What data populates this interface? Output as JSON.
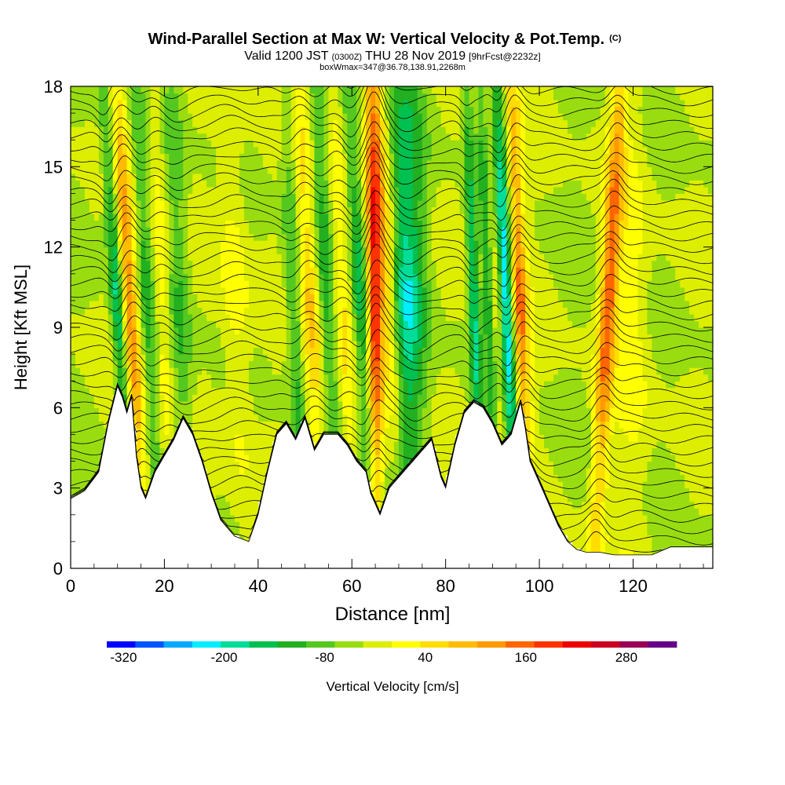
{
  "chart_data": {
    "type": "heatmap",
    "title": "Wind-Parallel Section at Max W: Vertical Velocity & Pot.Temp.",
    "title_mark": "(C)",
    "subtitle_parts": [
      "Valid 1200 JST",
      "(0300Z)",
      "THU 28 Nov 2019",
      "[9hrFcst@2232z]"
    ],
    "subtitle2": "boxWmax=347@36.78,138.91,2268m",
    "xlabel": "Distance [nm]",
    "ylabel": "Height [Kft MSL]",
    "xlim": [
      0,
      137
    ],
    "ylim": [
      0,
      18
    ],
    "x_ticks": [
      0,
      20,
      40,
      60,
      80,
      100,
      120
    ],
    "y_ticks": [
      0,
      3,
      6,
      9,
      12,
      15,
      18
    ],
    "colorbar": {
      "label": "Vertical Velocity [cm/s]",
      "min": -340,
      "max": 340,
      "step": 40,
      "tick_labels": [
        -320,
        -200,
        -80,
        40,
        160,
        280
      ],
      "colors": [
        "#0000ff",
        "#0055ff",
        "#00aaff",
        "#00eeff",
        "#00dd99",
        "#00c050",
        "#22b020",
        "#55c820",
        "#99dd11",
        "#ddee00",
        "#ffff00",
        "#ffdd00",
        "#ffbb00",
        "#ff9900",
        "#ff6600",
        "#ff3300",
        "#ee0000",
        "#cc0022",
        "#990055",
        "#660088"
      ]
    },
    "terrain_kft": [
      [
        0,
        2.6
      ],
      [
        3,
        2.9
      ],
      [
        6,
        3.6
      ],
      [
        8,
        5.4
      ],
      [
        10,
        6.8
      ],
      [
        11,
        6.4
      ],
      [
        12,
        5.8
      ],
      [
        13,
        6.4
      ],
      [
        14,
        4.2
      ],
      [
        15,
        3.0
      ],
      [
        16,
        2.6
      ],
      [
        18,
        3.6
      ],
      [
        20,
        4.2
      ],
      [
        22,
        4.8
      ],
      [
        24,
        5.6
      ],
      [
        26,
        5.0
      ],
      [
        28,
        4.0
      ],
      [
        30,
        2.8
      ],
      [
        32,
        1.8
      ],
      [
        35,
        1.2
      ],
      [
        38,
        1.0
      ],
      [
        40,
        2.0
      ],
      [
        42,
        3.6
      ],
      [
        44,
        5.0
      ],
      [
        46,
        5.4
      ],
      [
        48,
        4.8
      ],
      [
        50,
        5.6
      ],
      [
        52,
        4.4
      ],
      [
        54,
        5.0
      ],
      [
        57,
        5.0
      ],
      [
        59,
        4.6
      ],
      [
        61,
        4.0
      ],
      [
        63,
        3.6
      ],
      [
        64,
        2.8
      ],
      [
        66,
        2.0
      ],
      [
        68,
        3.0
      ],
      [
        72,
        3.8
      ],
      [
        75,
        4.4
      ],
      [
        77,
        4.8
      ],
      [
        79,
        3.4
      ],
      [
        80,
        3.0
      ],
      [
        82,
        4.6
      ],
      [
        84,
        5.8
      ],
      [
        86,
        6.2
      ],
      [
        88,
        6.0
      ],
      [
        90,
        5.4
      ],
      [
        92,
        4.6
      ],
      [
        94,
        5.0
      ],
      [
        96,
        6.2
      ],
      [
        97,
        5.2
      ],
      [
        98,
        4.0
      ],
      [
        100,
        3.2
      ],
      [
        102,
        2.4
      ],
      [
        104,
        1.6
      ],
      [
        106,
        1.0
      ],
      [
        108,
        0.7
      ],
      [
        110,
        0.6
      ],
      [
        113,
        0.6
      ],
      [
        116,
        0.5
      ],
      [
        120,
        0.5
      ],
      [
        124,
        0.5
      ],
      [
        128,
        0.8
      ],
      [
        132,
        0.8
      ],
      [
        137,
        0.8
      ]
    ],
    "updrafts": [
      {
        "x": 13.5,
        "w": 2.6,
        "lean": -0.35,
        "amp": 230
      },
      {
        "x": 20.0,
        "w": 2.2,
        "lean": -0.2,
        "amp": 90
      },
      {
        "x": 36.0,
        "w": 3.0,
        "lean": -0.2,
        "amp": 70
      },
      {
        "x": 52.5,
        "w": 2.6,
        "lean": -0.3,
        "amp": 150
      },
      {
        "x": 58.5,
        "w": 2.4,
        "lean": -0.25,
        "amp": 120
      },
      {
        "x": 65.0,
        "w": 1.6,
        "lean": -0.05,
        "amp": 290
      },
      {
        "x": 69.0,
        "w": 2.4,
        "lean": -0.3,
        "amp": 170
      },
      {
        "x": 88.0,
        "w": 2.0,
        "lean": -0.25,
        "amp": 110
      },
      {
        "x": 91.0,
        "w": 1.6,
        "lean": -0.2,
        "amp": 140
      },
      {
        "x": 96.5,
        "w": 1.8,
        "lean": -0.2,
        "amp": 220
      },
      {
        "x": 113.5,
        "w": 1.8,
        "lean": 0.3,
        "amp": 230
      },
      {
        "x": 120.0,
        "w": 4.0,
        "lean": -0.1,
        "amp": 60
      }
    ],
    "downdrafts": [
      {
        "x": 11.5,
        "w": 1.6,
        "lean": -0.35,
        "amp": -280
      },
      {
        "x": 17.5,
        "w": 2.0,
        "lean": -0.3,
        "amp": -120
      },
      {
        "x": 24.0,
        "w": 2.4,
        "lean": -0.2,
        "amp": -90
      },
      {
        "x": 48.5,
        "w": 1.8,
        "lean": -0.2,
        "amp": -120
      },
      {
        "x": 56.0,
        "w": 2.4,
        "lean": -0.3,
        "amp": -150
      },
      {
        "x": 63.0,
        "w": 1.8,
        "lean": -0.3,
        "amp": -160
      },
      {
        "x": 71.5,
        "w": 4.0,
        "lean": 0.0,
        "amp": -200
      },
      {
        "x": 87.0,
        "w": 1.4,
        "lean": -0.2,
        "amp": -260
      },
      {
        "x": 90.0,
        "w": 1.4,
        "lean": -0.2,
        "amp": -230
      },
      {
        "x": 94.0,
        "w": 1.6,
        "lean": -0.25,
        "amp": -260
      }
    ],
    "isentrope_count": 44
  }
}
